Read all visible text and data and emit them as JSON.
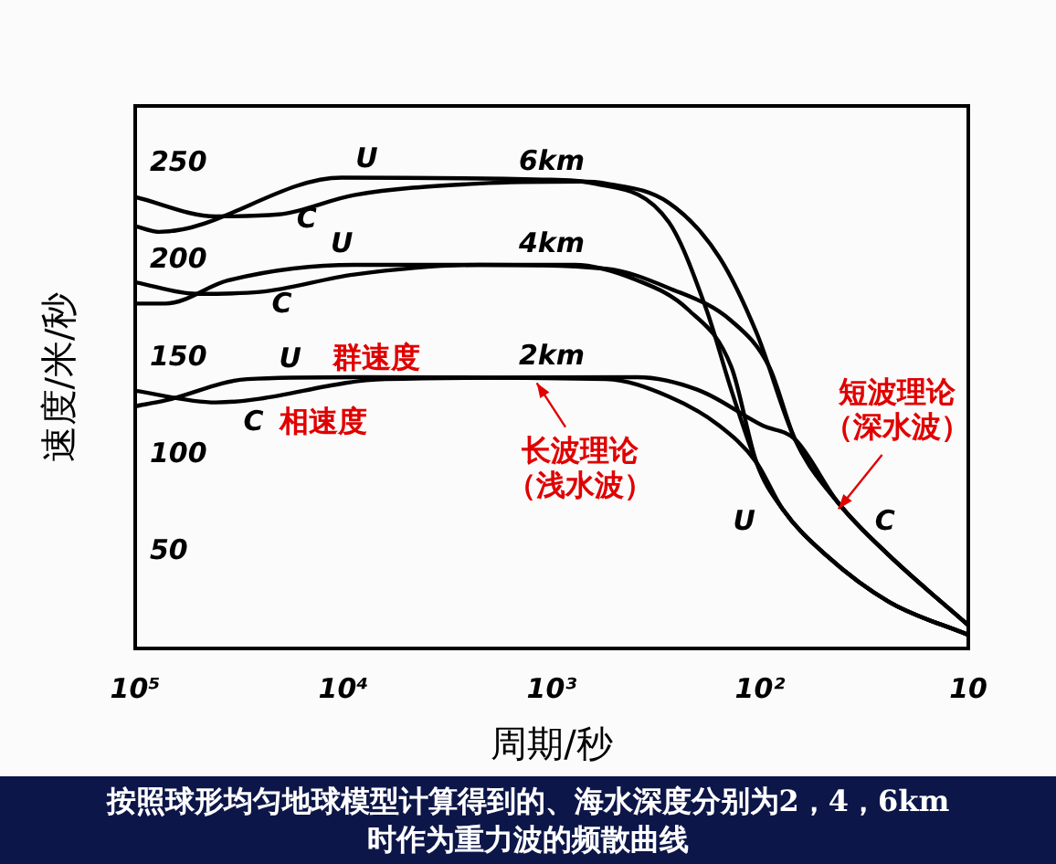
{
  "chart_data": {
    "type": "line",
    "xlabel": "周期/秒",
    "ylabel": "速度/米/秒",
    "log": "x",
    "grid": false,
    "legend": false,
    "marker": "none",
    "line_style": "solid",
    "xlim": [
      100000,
      10
    ],
    "xticks": [
      {
        "value": 100000,
        "label": "10⁵"
      },
      {
        "value": 10000,
        "label": "10⁴"
      },
      {
        "value": 1000,
        "label": "10³"
      },
      {
        "value": 100,
        "label": "10²"
      },
      10
    ],
    "ylim": [
      0,
      280
    ],
    "yticks": [
      50,
      100,
      150,
      200,
      250
    ],
    "series": [
      {
        "color": "#000000",
        "x": [
          100000,
          76800,
          10200,
          1100,
          630,
          274,
          181,
          137,
          104,
          78,
          48,
          24,
          10
        ],
        "values": [
          218,
          215,
          243,
          242,
          240,
          220,
          175,
          133,
          96,
          72,
          48,
          24,
          7
        ]
      },
      {
        "color": "#000000",
        "x": [
          100000,
          41000,
          20500,
          8900,
          2210,
          726,
          550,
          274,
          157,
          104,
          68,
          42,
          24,
          10
        ],
        "values": [
          233,
          223,
          224,
          234,
          240,
          241,
          240,
          230,
          202,
          163,
          108,
          75,
          48,
          12
        ]
      },
      {
        "color": "#000000",
        "x": [
          100000,
          71600,
          35700,
          8900,
          778,
          388,
          222,
          137,
          104,
          78,
          48,
          24,
          10
        ],
        "values": [
          178,
          178,
          190,
          198,
          198,
          190,
          175,
          145,
          96,
          72,
          48,
          24,
          7
        ]
      },
      {
        "color": "#000000",
        "x": [
          100000,
          50600,
          25200,
          8900,
          2210,
          550,
          274,
          137,
          90,
          68,
          42,
          24,
          10
        ],
        "values": [
          189,
          183,
          184,
          193,
          198,
          196,
          186,
          169,
          145,
          108,
          75,
          48,
          12
        ]
      },
      {
        "color": "#000000",
        "x": [
          100000,
          71600,
          29000,
          8900,
          550,
          274,
          157,
          104,
          78,
          48,
          24,
          10
        ],
        "values": [
          125,
          128,
          139,
          140,
          139,
          130,
          115,
          96,
          72,
          48,
          24,
          7
        ]
      },
      {
        "color": "#000000",
        "x": [
          100000,
          41000,
          6280,
          388,
          194,
          97,
          68,
          42,
          24,
          10
        ],
        "values": [
          133,
          127,
          139,
          140,
          133,
          115,
          108,
          75,
          48,
          12
        ]
      }
    ],
    "annotations": [
      "U",
      "6km",
      "C",
      "U",
      "4km",
      "C",
      "U",
      "群速度",
      "2km",
      "C",
      "相速度",
      {
        "text": "长波理论",
        "x": 1180,
        "y": 137
      },
      "（浅水波）",
      "短波理论",
      {
        "text": "（深水波）",
        "x": 42,
        "y": 72
      },
      "U",
      "C",
      "按照球形均匀地球模型计算得到的、海水深度分别为2，4，6km时作为重力波的频散曲线"
    ]
  }
}
